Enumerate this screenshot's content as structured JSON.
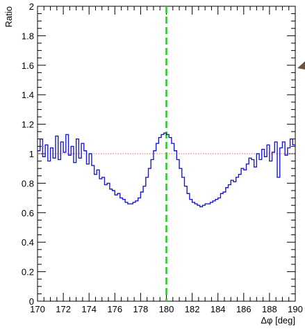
{
  "chart_data": {
    "type": "line",
    "title": "",
    "xlabel": "Δφ [deg]",
    "ylabel": "Ratio",
    "xlim": [
      170,
      190
    ],
    "ylim": [
      0,
      2
    ],
    "grid": false,
    "x_ticks": [
      "170",
      "172",
      "174",
      "176",
      "178",
      "180",
      "182",
      "184",
      "186",
      "188",
      "190"
    ],
    "y_ticks": [
      "0",
      "0.2",
      "0.4",
      "0.6",
      "0.8",
      "1",
      "1.2",
      "1.4",
      "1.6",
      "1.8",
      "2"
    ],
    "reference_lines": [
      {
        "orientation": "horizontal",
        "value": 1.0,
        "style": "dotted",
        "color": "#e06060"
      },
      {
        "orientation": "vertical",
        "value": 180,
        "style": "dashed",
        "color": "#22cc22"
      }
    ],
    "series": [
      {
        "color": "#1a1acc",
        "style": "step",
        "x": [
          170.0,
          170.2,
          170.4,
          170.6,
          170.8,
          171.0,
          171.2,
          171.4,
          171.6,
          171.8,
          172.0,
          172.2,
          172.4,
          172.6,
          172.8,
          173.0,
          173.2,
          173.4,
          173.6,
          173.8,
          174.0,
          174.2,
          174.4,
          174.6,
          174.8,
          175.0,
          175.2,
          175.4,
          175.6,
          175.8,
          176.0,
          176.2,
          176.4,
          176.6,
          176.8,
          177.0,
          177.2,
          177.4,
          177.6,
          177.8,
          178.0,
          178.2,
          178.4,
          178.6,
          178.8,
          179.0,
          179.2,
          179.4,
          179.6,
          179.8,
          180.0,
          180.2,
          180.4,
          180.6,
          180.8,
          181.0,
          181.2,
          181.4,
          181.6,
          181.8,
          182.0,
          182.2,
          182.4,
          182.6,
          182.8,
          183.0,
          183.2,
          183.4,
          183.6,
          183.8,
          184.0,
          184.2,
          184.4,
          184.6,
          184.8,
          185.0,
          185.2,
          185.4,
          185.6,
          185.8,
          186.0,
          186.2,
          186.4,
          186.6,
          186.8,
          187.0,
          187.2,
          187.4,
          187.6,
          187.8,
          188.0,
          188.2,
          188.4,
          188.6,
          188.8,
          189.0,
          189.2,
          189.4,
          189.6,
          189.8
        ],
        "values": [
          1.02,
          1.1,
          0.98,
          1.06,
          0.95,
          1.04,
          0.97,
          1.12,
          0.96,
          1.08,
          1.01,
          1.13,
          0.99,
          1.05,
          0.94,
          1.1,
          0.97,
          1.07,
          1.02,
          0.93,
          1.0,
          0.92,
          0.86,
          0.89,
          0.83,
          0.84,
          0.79,
          0.8,
          0.76,
          0.75,
          0.72,
          0.73,
          0.7,
          0.69,
          0.67,
          0.66,
          0.66,
          0.67,
          0.68,
          0.7,
          0.74,
          0.78,
          0.84,
          0.9,
          0.96,
          1.02,
          1.07,
          1.11,
          1.13,
          1.14,
          1.13,
          1.11,
          1.07,
          1.02,
          0.96,
          0.9,
          0.84,
          0.78,
          0.73,
          0.69,
          0.67,
          0.66,
          0.65,
          0.64,
          0.65,
          0.66,
          0.66,
          0.67,
          0.68,
          0.69,
          0.7,
          0.73,
          0.74,
          0.77,
          0.79,
          0.82,
          0.81,
          0.84,
          0.86,
          0.9,
          0.89,
          0.93,
          0.97,
          0.96,
          0.91,
          1.0,
          0.96,
          1.03,
          0.98,
          1.06,
          0.95,
          1.01,
          1.08,
          0.84,
          1.04,
          1.08,
          0.99,
          1.04,
          1.1,
          1.06
        ]
      }
    ]
  }
}
